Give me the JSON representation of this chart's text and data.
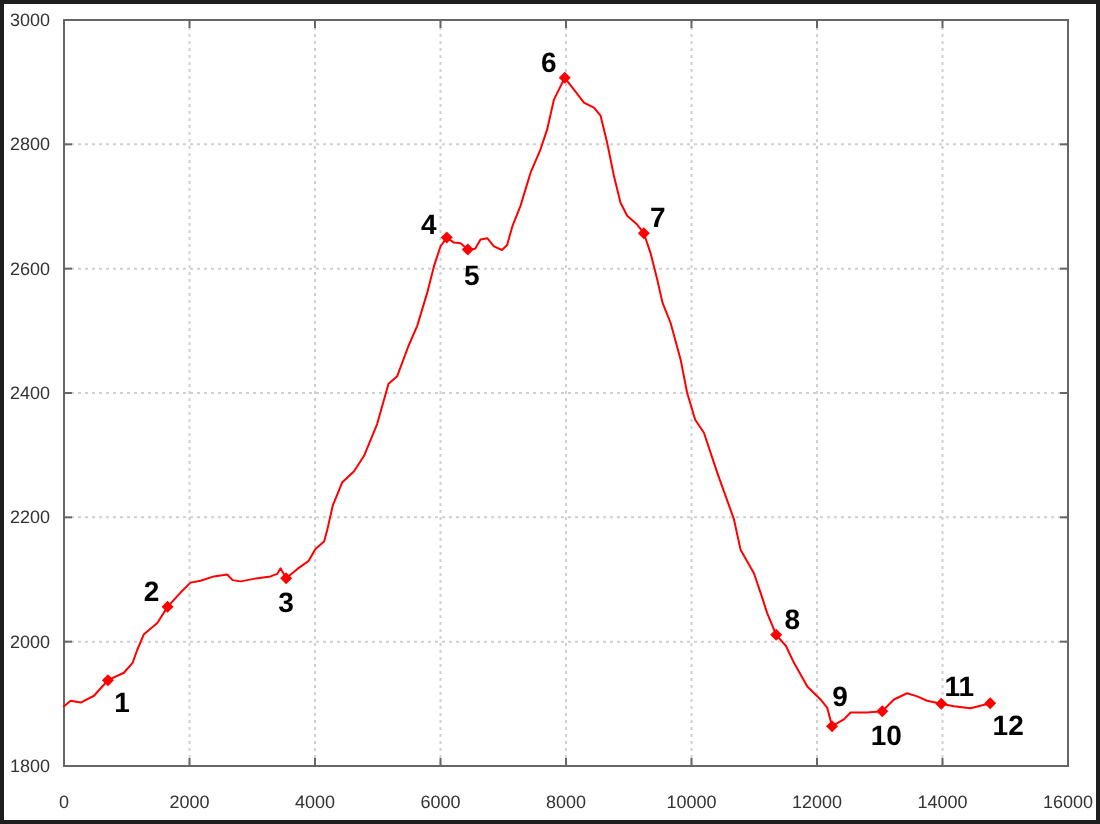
{
  "chart_data": {
    "type": "line",
    "xlim": [
      0,
      16000
    ],
    "ylim": [
      1800,
      3000
    ],
    "xticks": [
      0,
      2000,
      4000,
      6000,
      8000,
      10000,
      12000,
      14000,
      16000
    ],
    "yticks": [
      1800,
      2000,
      2200,
      2400,
      2600,
      2800,
      3000
    ],
    "grid": true,
    "series": [
      {
        "color": "#ff0000",
        "marker": "none",
        "line_style": "solid",
        "x": [
          0,
          106,
          266,
          478,
          700,
          955,
          1093,
          1168,
          1274,
          1487,
          1650,
          1857,
          2017,
          2176,
          2389,
          2601,
          2686,
          2814,
          3026,
          3292,
          3398,
          3451,
          3540,
          3720,
          3900,
          4007,
          4145,
          4198,
          4283,
          4432,
          4623,
          4782,
          4990,
          5172,
          5310,
          5491,
          5629,
          5788,
          5896,
          6001,
          6100,
          6214,
          6320,
          6435,
          6553,
          6638,
          6745,
          6852,
          6980,
          7062,
          7148,
          7275,
          7434,
          7594,
          7700,
          7808,
          7980,
          8127,
          8286,
          8445,
          8551,
          8657,
          8764,
          8869,
          8975,
          9134,
          9240,
          9348,
          9453,
          9539,
          9666,
          9826,
          9931,
          10059,
          10198,
          10410,
          10676,
          10782,
          10995,
          11100,
          11206,
          11350,
          11506,
          11633,
          11846,
          12056,
          12162,
          12240,
          12429,
          12535,
          12800,
          13040,
          13226,
          13436,
          13596,
          13755,
          13980,
          14182,
          14447,
          14760
        ],
        "values": [
          1896,
          1905,
          1902,
          1913,
          1938,
          1950,
          1966,
          1987,
          2012,
          2030,
          2056,
          2079,
          2095,
          2098,
          2105,
          2108,
          2099,
          2097,
          2101,
          2105,
          2109,
          2118,
          2102,
          2117,
          2130,
          2149,
          2161,
          2181,
          2219,
          2256,
          2274,
          2299,
          2350,
          2415,
          2427,
          2476,
          2508,
          2561,
          2604,
          2636,
          2650,
          2642,
          2641,
          2631,
          2632,
          2647,
          2649,
          2636,
          2630,
          2638,
          2669,
          2701,
          2754,
          2792,
          2824,
          2872,
          2907,
          2888,
          2867,
          2859,
          2846,
          2802,
          2749,
          2706,
          2685,
          2671,
          2657,
          2625,
          2583,
          2545,
          2513,
          2454,
          2400,
          2357,
          2336,
          2272,
          2197,
          2148,
          2110,
          2079,
          2046,
          2011,
          1993,
          1966,
          1928,
          1907,
          1894,
          1864,
          1875,
          1886,
          1886,
          1888,
          1907,
          1917,
          1912,
          1905,
          1900,
          1896,
          1893,
          1901
        ]
      },
      {
        "type": "scatter",
        "color": "#ff0000",
        "marker": "diamond",
        "x": [
          700,
          1650,
          3540,
          6100,
          6435,
          7980,
          9240,
          11350,
          12240,
          13040,
          13980,
          14760
        ],
        "values": [
          1938,
          2056,
          2102,
          2650,
          2631,
          2907,
          2657,
          2011,
          1864,
          1888,
          1900,
          1901
        ]
      }
    ],
    "annotations": [
      {
        "text": "1",
        "x": 700,
        "y": 1938
      },
      {
        "text": "2",
        "x": 1650,
        "y": 2056
      },
      {
        "text": "3",
        "x": 3540,
        "y": 2102
      },
      {
        "text": "4",
        "x": 6100,
        "y": 2650
      },
      {
        "text": "5",
        "x": 6435,
        "y": 2631
      },
      {
        "text": "6",
        "x": 7980,
        "y": 2907
      },
      {
        "text": "7",
        "x": 9240,
        "y": 2657
      },
      {
        "text": "8",
        "x": 11350,
        "y": 2011
      },
      {
        "text": "9",
        "x": 12240,
        "y": 1864
      },
      {
        "text": "10",
        "x": 13040,
        "y": 1888
      },
      {
        "text": "11",
        "x": 13980,
        "y": 1900
      },
      {
        "text": "12",
        "x": 14760,
        "y": 1901
      }
    ]
  }
}
